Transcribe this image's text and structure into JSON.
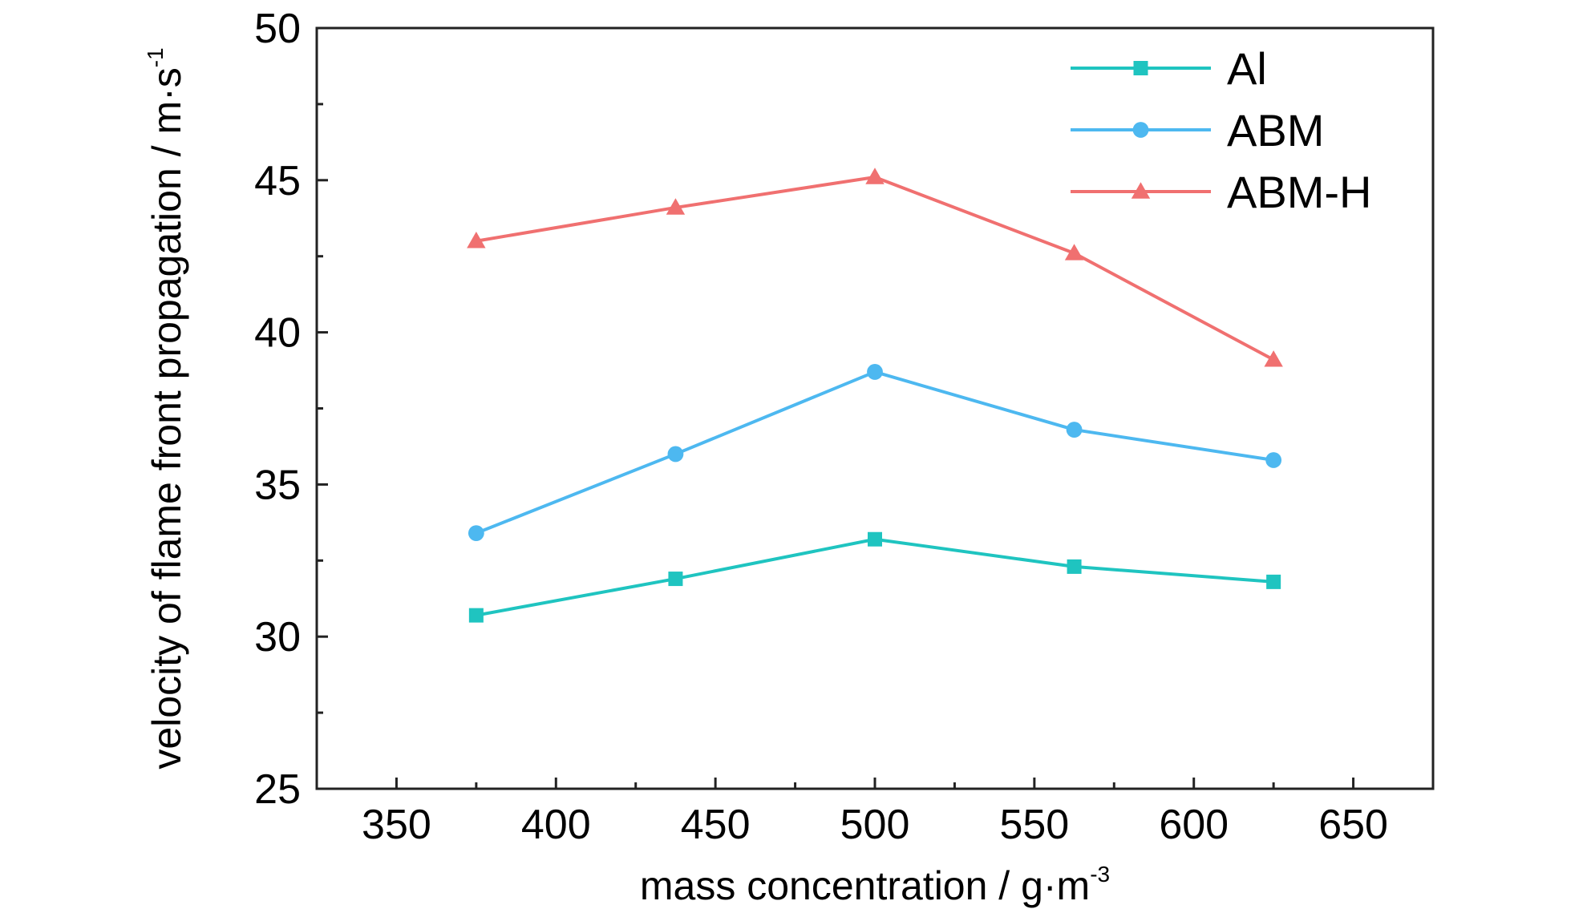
{
  "chart_data": {
    "type": "line",
    "x": [
      375,
      437.5,
      500,
      562.5,
      625
    ],
    "xlabel_main": "mass concentration / g·m",
    "xlabel_sup": "-3",
    "ylabel_main": "velocity of flame front propagation / m·s",
    "ylabel_sup": "-1",
    "xlim": [
      325,
      675
    ],
    "ylim": [
      25,
      50
    ],
    "xticks": [
      350,
      400,
      450,
      500,
      550,
      600,
      650
    ],
    "yticks": [
      25,
      30,
      35,
      40,
      45,
      50
    ],
    "grid": false,
    "legend_position": "top-right",
    "series": [
      {
        "name": "Al",
        "marker": "square",
        "color": "#1fc4c0",
        "values": [
          30.7,
          31.9,
          33.2,
          32.3,
          31.8
        ]
      },
      {
        "name": "ABM",
        "marker": "circle",
        "color": "#4db8f0",
        "values": [
          33.4,
          36.0,
          38.7,
          36.8,
          35.8
        ]
      },
      {
        "name": "ABM-H",
        "marker": "triangle",
        "color": "#f07070",
        "values": [
          43.0,
          44.1,
          45.1,
          42.6,
          39.1
        ]
      }
    ]
  }
}
